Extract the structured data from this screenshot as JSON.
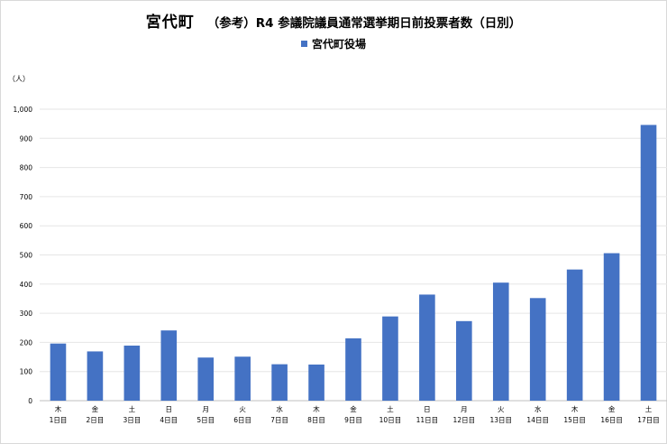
{
  "title": "宮代町",
  "subtitle": "（参考）R4 参議院議員通常選挙期日前投票者数（日別）",
  "legend_label": "宮代町役場",
  "unit_label": "（人）",
  "colors": {
    "bar": "#4472c4",
    "grid": "#e6e6e6",
    "axis": "#bfbfbf"
  },
  "chart_data": {
    "type": "bar",
    "title": "宮代町　（参考）R4 参議院議員通常選挙期日前投票者数（日別）",
    "ylabel": "（人）",
    "xlabel": "",
    "ylim": [
      0,
      1000
    ],
    "y_ticks": [
      "0",
      "100",
      "200",
      "300",
      "400",
      "500",
      "600",
      "700",
      "800",
      "900",
      "1,000"
    ],
    "grid": true,
    "legend_position": "top-center",
    "categories": [
      {
        "weekday": "木",
        "day": "1日目"
      },
      {
        "weekday": "金",
        "day": "2日目"
      },
      {
        "weekday": "土",
        "day": "3日目"
      },
      {
        "weekday": "日",
        "day": "4日目"
      },
      {
        "weekday": "月",
        "day": "5日目"
      },
      {
        "weekday": "火",
        "day": "6日目"
      },
      {
        "weekday": "水",
        "day": "7日目"
      },
      {
        "weekday": "木",
        "day": "8日目"
      },
      {
        "weekday": "金",
        "day": "9日目"
      },
      {
        "weekday": "土",
        "day": "10日目"
      },
      {
        "weekday": "日",
        "day": "11日目"
      },
      {
        "weekday": "月",
        "day": "12日目"
      },
      {
        "weekday": "火",
        "day": "13日目"
      },
      {
        "weekday": "水",
        "day": "14日目"
      },
      {
        "weekday": "木",
        "day": "15日目"
      },
      {
        "weekday": "金",
        "day": "16日目"
      },
      {
        "weekday": "土",
        "day": "17日目"
      }
    ],
    "series": [
      {
        "name": "宮代町役場",
        "values": [
          196,
          169,
          189,
          241,
          148,
          151,
          125,
          124,
          214,
          289,
          364,
          273,
          405,
          352,
          450,
          506,
          946
        ]
      }
    ]
  }
}
